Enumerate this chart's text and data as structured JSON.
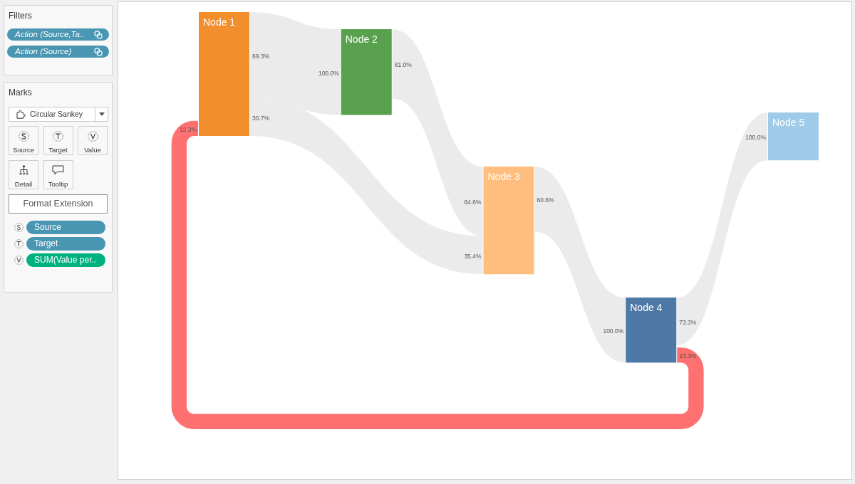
{
  "chart_data": [
    {
      "type": "other",
      "title": "Filters",
      "annotations": [
        "Action (Source,Ta..",
        "Action (Source)"
      ]
    },
    {
      "type": "other",
      "title": "Marks",
      "annotations": [
        "Circular Sankey",
        "Source",
        "Target",
        "Value",
        "Detail",
        "Tooltip",
        "Format Extension",
        "Source",
        "Target",
        "SUM(Value per.."
      ]
    },
    {
      "type": "other",
      "categories": [
        "Node 1",
        "Node 2",
        "Node 3",
        "Node 4",
        "Node 5"
      ],
      "colors": [
        "#f28e2b",
        "#59a14f",
        "#ffbe7d",
        "#4e79a7",
        "#a0cbe8"
      ],
      "series": [
        {
          "color": "#ebebeb",
          "values": [
            69.3,
            null,
            null,
            null,
            null
          ],
          "value_labels": [
            "69.3%",
            null,
            null,
            null,
            null
          ]
        },
        {
          "values": [
            null,
            100.0,
            null,
            null,
            null
          ],
          "value_labels": [
            null,
            "100.0%",
            null,
            null,
            null
          ]
        },
        {
          "color": "#ebebeb",
          "values": [
            null,
            81.0,
            null,
            null,
            null
          ],
          "value_labels": [
            null,
            "81.0%",
            null,
            null,
            null
          ]
        },
        {
          "values": [
            null,
            null,
            64.6,
            null,
            null
          ],
          "value_labels": [
            null,
            null,
            "64.6%",
            null,
            null
          ]
        },
        {
          "color": "#ebebeb",
          "values": [
            30.7,
            null,
            null,
            null,
            null
          ],
          "value_labels": [
            "30.7%",
            null,
            null,
            null,
            null
          ]
        },
        {
          "values": [
            null,
            null,
            35.4,
            null,
            null
          ],
          "value_labels": [
            null,
            null,
            "35.4%",
            null,
            null
          ]
        },
        {
          "color": "#ebebeb",
          "values": [
            null,
            null,
            60.6,
            null,
            null
          ],
          "value_labels": [
            null,
            null,
            "60.6%",
            null,
            null
          ]
        },
        {
          "values": [
            null,
            null,
            null,
            100.0,
            null
          ],
          "value_labels": [
            null,
            null,
            null,
            "100.0%",
            null
          ]
        },
        {
          "color": "#ebebeb",
          "values": [
            null,
            null,
            null,
            73.3,
            null
          ],
          "value_labels": [
            null,
            null,
            null,
            "73.3%",
            null
          ]
        },
        {
          "values": [
            null,
            null,
            null,
            null,
            100.0
          ],
          "value_labels": [
            null,
            null,
            null,
            null,
            "100.0%"
          ]
        },
        {
          "color": "#ff7070",
          "values": [
            null,
            null,
            null,
            23.3,
            null
          ],
          "value_labels": [
            null,
            null,
            null,
            "23.3%",
            null
          ]
        },
        {
          "values": [
            12.3,
            null,
            null,
            null,
            null
          ],
          "value_labels": [
            "12.3%",
            null,
            null,
            null,
            null
          ]
        }
      ]
    }
  ]
}
